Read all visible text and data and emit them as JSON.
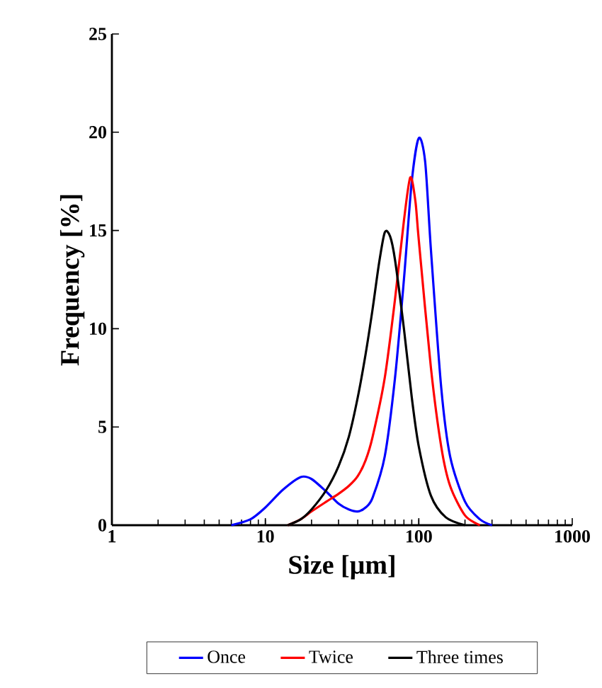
{
  "chart_data": {
    "type": "line",
    "xlabel": "Size [µm]",
    "ylabel": "Frequency [%]",
    "log": "x",
    "xlim": [
      1,
      1000
    ],
    "xticks": [
      1,
      10,
      100,
      1000
    ],
    "ylim": [
      0,
      25
    ],
    "yticks": [
      0,
      5,
      10,
      15,
      20,
      25
    ],
    "grid": false,
    "legend": "bottom",
    "marker": "none",
    "line_style": "solid",
    "series": [
      {
        "name": "Once",
        "color": "#0000ff",
        "x": [
          6,
          8,
          10,
          13,
          17,
          20,
          25,
          30,
          35,
          40,
          45,
          50,
          60,
          70,
          80,
          90,
          100,
          110,
          120,
          140,
          160,
          200,
          250,
          300
        ],
        "values": [
          0,
          0.3,
          0.9,
          1.8,
          2.45,
          2.35,
          1.7,
          1.1,
          0.8,
          0.7,
          0.9,
          1.4,
          3.5,
          7.5,
          12.5,
          17.5,
          19.7,
          18.5,
          14,
          7,
          3.5,
          1.2,
          0.3,
          0
        ]
      },
      {
        "name": "Twice",
        "color": "#ff0000",
        "x": [
          14,
          17,
          20,
          25,
          30,
          35,
          40,
          45,
          50,
          60,
          70,
          80,
          88,
          95,
          100,
          120,
          140,
          160,
          200,
          250
        ],
        "values": [
          0,
          0.3,
          0.7,
          1.2,
          1.6,
          2.0,
          2.5,
          3.3,
          4.5,
          7.5,
          11.5,
          15.5,
          17.7,
          16.5,
          14.5,
          8,
          4,
          2,
          0.5,
          0
        ]
      },
      {
        "name": "Three times",
        "color": "#000000",
        "x": [
          14,
          17,
          20,
          25,
          30,
          35,
          40,
          45,
          50,
          55,
          60,
          65,
          70,
          80,
          90,
          100,
          120,
          150,
          200
        ],
        "values": [
          0,
          0.3,
          0.8,
          1.8,
          3,
          4.5,
          6.5,
          8.7,
          11,
          13.3,
          14.9,
          14.7,
          13.5,
          10,
          6.5,
          4,
          1.5,
          0.4,
          0
        ]
      }
    ]
  }
}
